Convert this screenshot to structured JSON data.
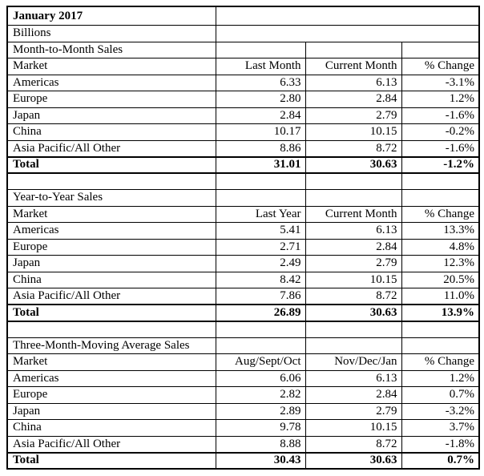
{
  "colors": {
    "background": "#ffffff",
    "border": "#000000",
    "text": "#000000"
  },
  "report": {
    "title": "January 2017",
    "units_label": "Billions",
    "sections": [
      {
        "name": "Month-to-Month Sales",
        "columns": [
          "Market",
          "Last Month",
          "Current Month",
          "% Change"
        ],
        "rows": [
          [
            "Americas",
            "6.33",
            "6.13",
            "-3.1%"
          ],
          [
            "Europe",
            "2.80",
            "2.84",
            "1.2%"
          ],
          [
            "Japan",
            "2.84",
            "2.79",
            "-1.6%"
          ],
          [
            "China",
            "10.17",
            "10.15",
            "-0.2%"
          ],
          [
            "Asia Pacific/All Other",
            "8.86",
            "8.72",
            "-1.6%"
          ]
        ],
        "total": [
          "Total",
          "31.01",
          "30.63",
          "-1.2%"
        ]
      },
      {
        "name": "Year-to-Year Sales",
        "columns": [
          "Market",
          "Last Year",
          "Current Month",
          "% Change"
        ],
        "rows": [
          [
            "Americas",
            "5.41",
            "6.13",
            "13.3%"
          ],
          [
            "Europe",
            "2.71",
            "2.84",
            "4.8%"
          ],
          [
            "Japan",
            "2.49",
            "2.79",
            "12.3%"
          ],
          [
            "China",
            "8.42",
            "10.15",
            "20.5%"
          ],
          [
            "Asia Pacific/All Other",
            "7.86",
            "8.72",
            "11.0%"
          ]
        ],
        "total": [
          "Total",
          "26.89",
          "30.63",
          "13.9%"
        ]
      },
      {
        "name": "Three-Month-Moving Average Sales",
        "columns": [
          "Market",
          "Aug/Sept/Oct",
          "Nov/Dec/Jan",
          "% Change"
        ],
        "rows": [
          [
            "Americas",
            "6.06",
            "6.13",
            "1.2%"
          ],
          [
            "Europe",
            "2.82",
            "2.84",
            "0.7%"
          ],
          [
            "Japan",
            "2.89",
            "2.79",
            "-3.2%"
          ],
          [
            "China",
            "9.78",
            "10.15",
            "3.7%"
          ],
          [
            "Asia Pacific/All Other",
            "8.88",
            "8.72",
            "-1.8%"
          ]
        ],
        "total": [
          "Total",
          "30.43",
          "30.63",
          "0.7%"
        ]
      }
    ]
  }
}
